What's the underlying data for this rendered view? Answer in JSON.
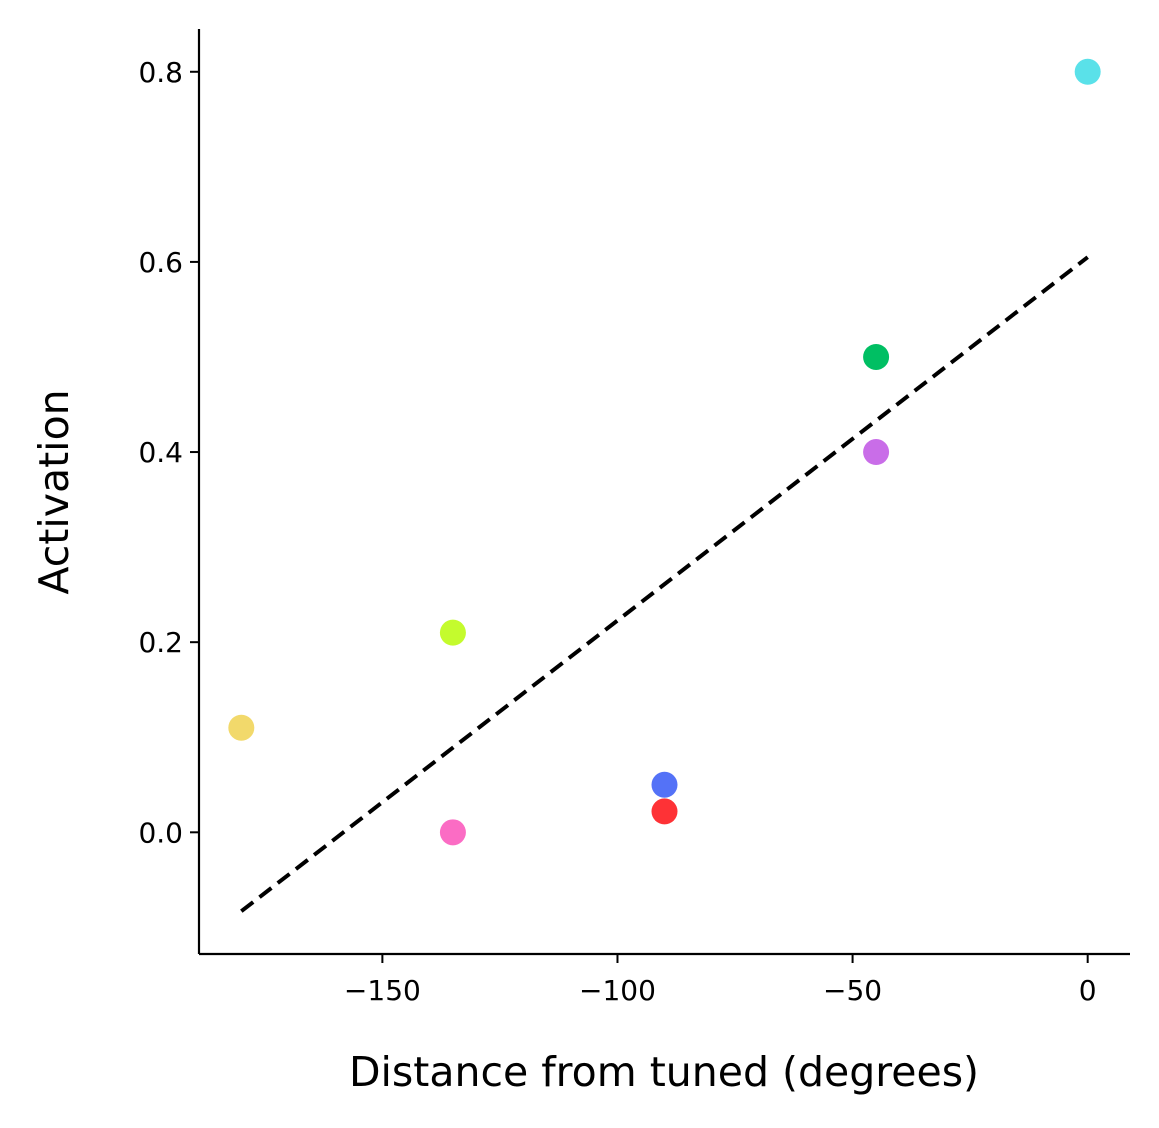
{
  "chart_data": {
    "type": "scatter",
    "title": "",
    "xlabel": "Distance from tuned (degrees)",
    "ylabel": "Activation",
    "xlim": [
      -189,
      9
    ],
    "ylim": [
      -0.128,
      0.845
    ],
    "xticks": [
      -150,
      -100,
      -50,
      0
    ],
    "xtick_labels": [
      "−150",
      "−100",
      "−50",
      "0"
    ],
    "yticks": [
      0.0,
      0.2,
      0.4,
      0.6,
      0.8
    ],
    "ytick_labels": [
      "0.0",
      "0.2",
      "0.4",
      "0.6",
      "0.8"
    ],
    "grid": false,
    "points": [
      {
        "x": -180,
        "y": 0.11,
        "color": "#f2d96b"
      },
      {
        "x": -135,
        "y": 0.21,
        "color": "#c4fb2d"
      },
      {
        "x": -135,
        "y": 0.0,
        "color": "#fb6cc4"
      },
      {
        "x": -90,
        "y": 0.05,
        "color": "#5472f7"
      },
      {
        "x": -90,
        "y": 0.022,
        "color": "#fe3236"
      },
      {
        "x": -45,
        "y": 0.5,
        "color": "#00bf63"
      },
      {
        "x": -45,
        "y": 0.4,
        "color": "#c96de8"
      },
      {
        "x": 0,
        "y": 0.8,
        "color": "#5ae1e9"
      }
    ],
    "fit_line": {
      "x": [
        -180,
        0
      ],
      "y": [
        -0.083,
        0.605
      ],
      "style": "dashed",
      "color": "#000000"
    }
  }
}
